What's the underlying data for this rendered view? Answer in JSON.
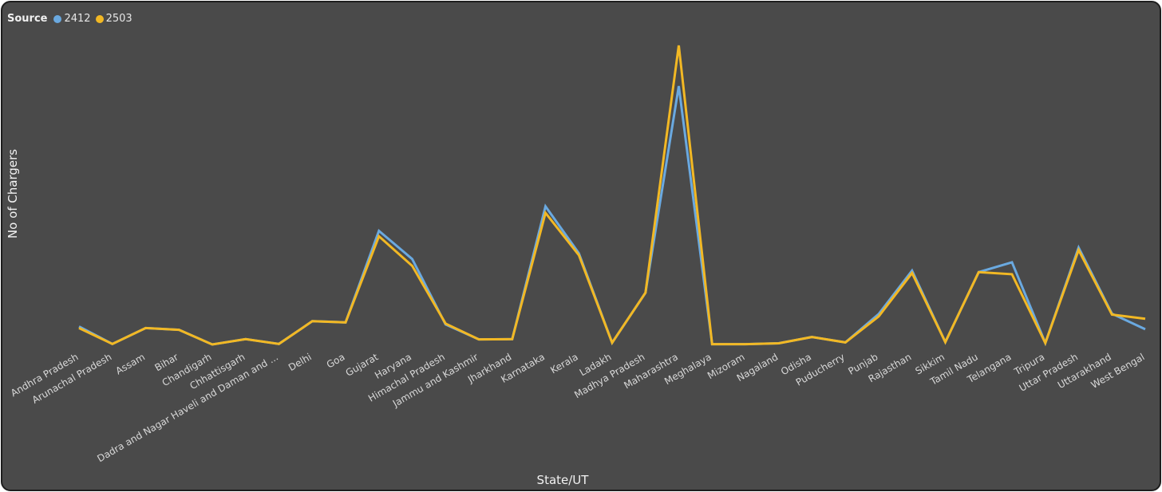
{
  "colors": {
    "background": "#4a4a4a",
    "series_2412": "#6aa9e0",
    "series_2503": "#f2b824",
    "text": "#e6e6e6"
  },
  "legend": {
    "title": "Source",
    "items": [
      {
        "label": "2412",
        "color": "#6aa9e0"
      },
      {
        "label": "2503",
        "color": "#f2b824"
      }
    ]
  },
  "chart_data": {
    "type": "line",
    "title": "",
    "xlabel": "State/UT",
    "ylabel": "No of Chargers",
    "ylim": [
      0,
      100
    ],
    "grid": false,
    "legend_position": "top-left",
    "categories": [
      "Andhra Pradesh",
      "Arunachal Pradesh",
      "Assam",
      "Bihar",
      "Chandigarh",
      "Chhattisgarh",
      "Dadra and Nagar Haveli and Daman and ...",
      "Delhi",
      "Goa",
      "Gujarat",
      "Haryana",
      "Himachal Pradesh",
      "Jammu and Kashmir",
      "Jharkhand",
      "Karnataka",
      "Kerala",
      "Ladakh",
      "Madhya Pradesh",
      "Maharashtra",
      "Meghalaya",
      "Mizoram",
      "Nagaland",
      "Odisha",
      "Puducherry",
      "Punjab",
      "Rajasthan",
      "Sikkim",
      "Tamil Nadu",
      "Telangana",
      "Tripura",
      "Uttar Pradesh",
      "Uttarakhand",
      "West Bengal"
    ],
    "series": [
      {
        "name": "2412",
        "color": "#6aa9e0",
        "values": [
          6.0,
          0.2,
          5.5,
          4.9,
          0.0,
          1.8,
          0.2,
          7.8,
          7.4,
          38.0,
          28.6,
          6.7,
          1.7,
          1.8,
          46.2,
          30.5,
          0.6,
          17.3,
          86.4,
          0.1,
          0.1,
          0.4,
          2.5,
          0.7,
          10.2,
          24.7,
          0.8,
          24.2,
          27.5,
          0.5,
          32.4,
          10.3,
          5.1
        ]
      },
      {
        "name": "2503",
        "color": "#f2b824",
        "values": [
          5.5,
          0.2,
          5.5,
          4.9,
          0.0,
          1.8,
          0.2,
          7.8,
          7.4,
          36.2,
          26.3,
          7.0,
          1.7,
          1.8,
          44.0,
          29.9,
          0.6,
          17.3,
          100.0,
          0.1,
          0.1,
          0.4,
          2.5,
          0.7,
          9.4,
          23.9,
          0.8,
          24.2,
          23.5,
          0.5,
          31.6,
          10.0,
          8.6
        ]
      }
    ]
  }
}
